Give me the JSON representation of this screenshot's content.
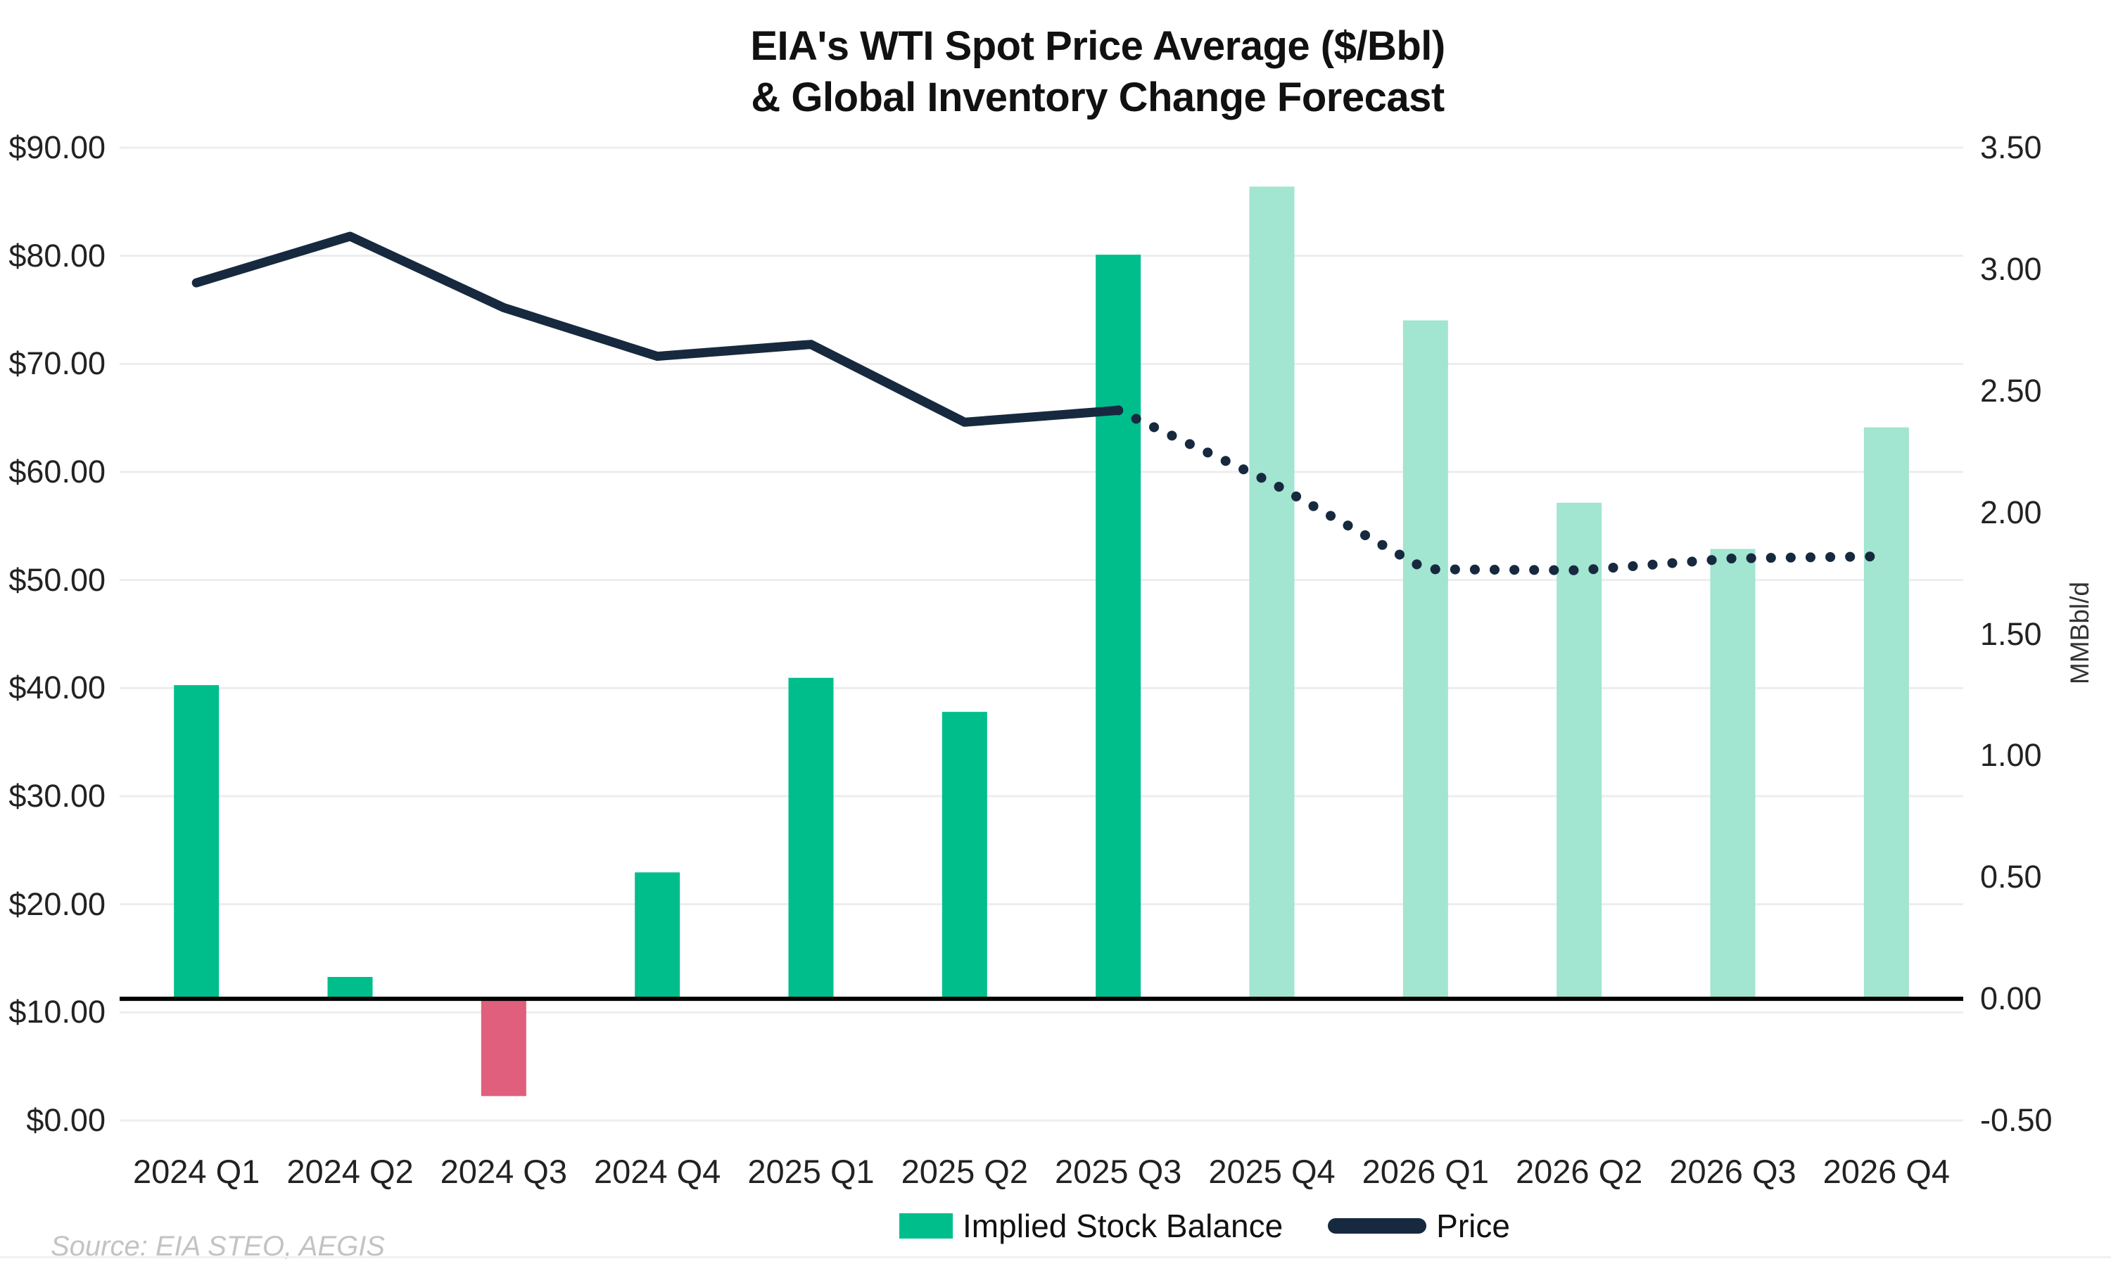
{
  "title": {
    "line1": "EIA's WTI Spot Price Average ($/Bbl)",
    "line2": "& Global Inventory Change Forecast"
  },
  "source": "Source: EIA STEO, AEGIS",
  "axes": {
    "left_ticks": [
      "$90.00",
      "$80.00",
      "$70.00",
      "$60.00",
      "$50.00",
      "$40.00",
      "$30.00",
      "$20.00",
      "$10.00",
      "$0.00"
    ],
    "right_ticks": [
      "3.50",
      "3.00",
      "2.50",
      "2.00",
      "1.50",
      "1.00",
      "0.50",
      "0.00",
      "-0.50"
    ],
    "right_axis_label": "MMBbl/d"
  },
  "legend": {
    "bar_label": "Implied Stock Balance",
    "line_label": "Price"
  },
  "colors": {
    "bar_actual_positive": "#00BE8C",
    "bar_actual_negative": "#E05F7D",
    "bar_forecast": "#A2E5D0",
    "price_line": "#17293F",
    "gridline": "#EDEDED",
    "zero_line": "#000000",
    "title_text": "#111111",
    "tick_text": "#222222",
    "source_text": "#C3C3C3"
  },
  "chart_data": {
    "type": "combo_bar_line",
    "title": "EIA's WTI Spot Price Average ($/Bbl) & Global Inventory Change Forecast",
    "categories": [
      "2024 Q1",
      "2024 Q2",
      "2024 Q3",
      "2024 Q4",
      "2025 Q1",
      "2025 Q2",
      "2025 Q3",
      "2025 Q4",
      "2026 Q1",
      "2026 Q2",
      "2026 Q3",
      "2026 Q4"
    ],
    "series": [
      {
        "name": "Implied Stock Balance",
        "type": "bar",
        "axis": "right",
        "unit": "MMBbl/d",
        "values": [
          1.29,
          0.09,
          -0.4,
          0.52,
          1.32,
          1.18,
          3.06,
          3.34,
          2.79,
          2.04,
          1.85,
          2.35
        ],
        "forecast_start_index": 7,
        "note": "bars from 2025 Q4 onward shown in lighter forecast shade; negative bar shown in pink"
      },
      {
        "name": "Price",
        "type": "line",
        "axis": "left",
        "unit": "$/Bbl",
        "values": [
          77.5,
          81.8,
          75.2,
          70.7,
          71.8,
          64.6,
          65.7,
          59.0,
          51.0,
          50.9,
          52.0,
          52.2
        ],
        "forecast_start_index": 7,
        "note": "line dotted from 2025 Q3 vertex onward (forecast)"
      }
    ],
    "left_axis": {
      "min": 0,
      "max": 90,
      "tick_step": 10,
      "format": "$#0.00"
    },
    "right_axis": {
      "min": -0.5,
      "max": 3.5,
      "tick_step": 0.5,
      "label": "MMBbl/d"
    },
    "grid": "horizontal",
    "legend_position": "bottom-center",
    "zero_line_axis": "right"
  }
}
